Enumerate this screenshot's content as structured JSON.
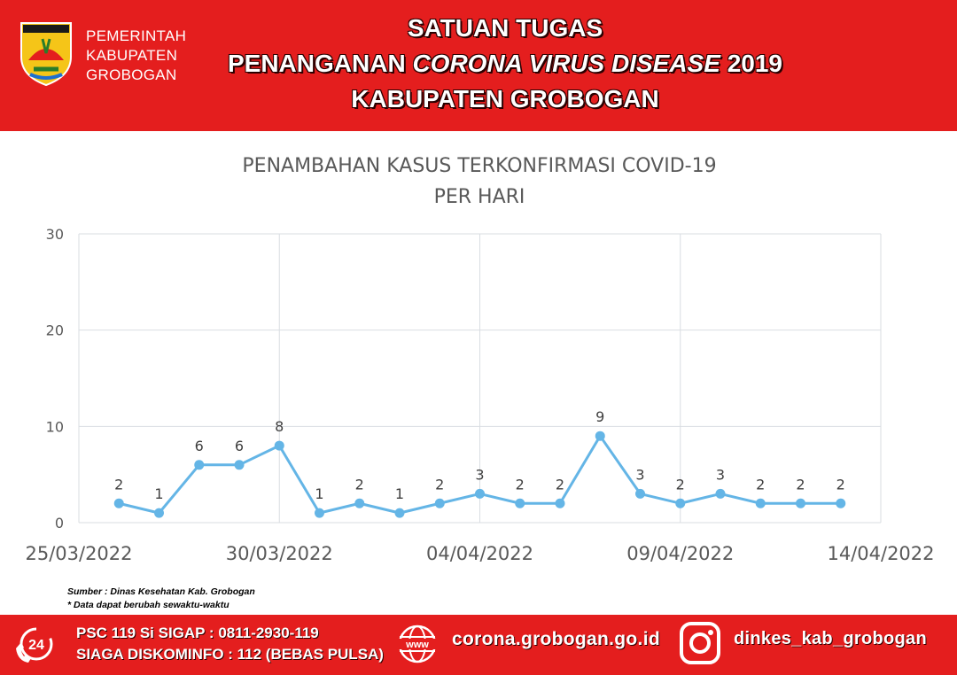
{
  "header": {
    "gov_lines": [
      "PEMERINTAH",
      "KABUPATEN",
      "GROBOGAN"
    ],
    "title_line1": "SATUAN TUGAS",
    "title_line2_a": "PENANGANAN ",
    "title_line2_b": "CORONA VIRUS DISEASE",
    "title_line2_c": " 2019",
    "title_line3": "KABUPATEN GROBOGAN",
    "logo_icon": "regency-emblem-icon"
  },
  "colors": {
    "brand_red": "#e41e1e",
    "series_line": "#64b5e6",
    "grid": "#d9dde2"
  },
  "chart_data": {
    "type": "line",
    "title": "PENAMBAHAN KASUS TERKONFIRMASI COVID-19",
    "subtitle": "PER HARI",
    "xlabel": "",
    "ylabel": "",
    "x_tick_labels": [
      "25/03/2022",
      "30/03/2022",
      "04/04/2022",
      "09/04/2022",
      "14/04/2022"
    ],
    "x": [
      "25/03/2022",
      "26/03/2022",
      "27/03/2022",
      "28/03/2022",
      "29/03/2022",
      "30/03/2022",
      "31/03/2022",
      "01/04/2022",
      "02/04/2022",
      "03/04/2022",
      "04/04/2022",
      "05/04/2022",
      "06/04/2022",
      "07/04/2022",
      "08/04/2022",
      "09/04/2022",
      "10/04/2022",
      "11/04/2022",
      "12/04/2022",
      "13/04/2022",
      "14/04/2022"
    ],
    "series": [
      {
        "values": [
          null,
          2,
          1,
          6,
          6,
          8,
          1,
          2,
          1,
          2,
          3,
          2,
          2,
          9,
          3,
          2,
          3,
          2,
          2,
          2,
          null
        ]
      }
    ],
    "y_ticks": [
      0,
      10,
      20,
      30
    ],
    "ylim": [
      0,
      30
    ],
    "grid": true,
    "data_labels": true,
    "legend": "none"
  },
  "notes": {
    "source": "Sumber : Dinas Kesehatan Kab. Grobogan",
    "disclaimer": "* Data dapat berubah sewaktu-waktu"
  },
  "footer": {
    "psc": "PSC 119 Si SIGAP : 0811-2930-119",
    "siaga": "SIAGA DISKOMINFO : 112 (BEBAS PULSA)",
    "website": "corona.grobogan.go.id",
    "instagram": "dinkes_kab_grobogan",
    "phone_badge": "24",
    "phone_icon": "phone-24-icon",
    "www_icon": "www-globe-icon",
    "ig_icon": "instagram-icon"
  }
}
